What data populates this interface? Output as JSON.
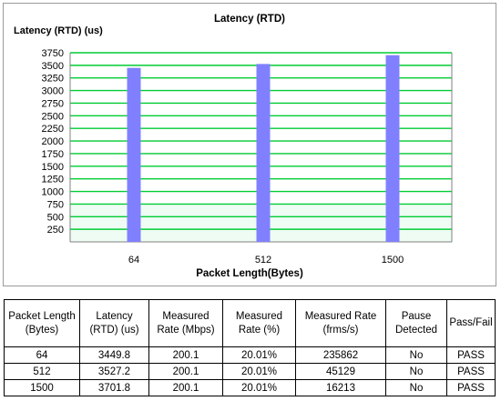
{
  "chart_data": {
    "type": "bar",
    "title": "Latency (RTD)",
    "ylabel": "Latency (RTD) (us)",
    "xlabel": "Packet Length(Bytes)",
    "categories": [
      "64",
      "512",
      "1500"
    ],
    "values": [
      3449.8,
      3527.2,
      3701.8
    ],
    "ylim": [
      0,
      3750
    ],
    "yticks": [
      250,
      500,
      750,
      1000,
      1250,
      1500,
      1750,
      2000,
      2250,
      2500,
      2750,
      3000,
      3250,
      3500,
      3750
    ],
    "grid": true,
    "colors": {
      "bar": "#8080ff",
      "grid": "#00cc33",
      "axis": "#808080"
    }
  },
  "table": {
    "headers": [
      "Packet Length (Bytes)",
      "Latency (RTD) (us)",
      "Measured Rate (Mbps)",
      "Measured Rate (%)",
      "Measured Rate (frms/s)",
      "Pause Detected",
      "Pass/Fail"
    ],
    "rows": [
      [
        "64",
        "3449.8",
        "200.1",
        "20.01%",
        "235862",
        "No",
        "PASS"
      ],
      [
        "512",
        "3527.2",
        "200.1",
        "20.01%",
        "45129",
        "No",
        "PASS"
      ],
      [
        "1500",
        "3701.8",
        "200.1",
        "20.01%",
        "16213",
        "No",
        "PASS"
      ]
    ]
  }
}
